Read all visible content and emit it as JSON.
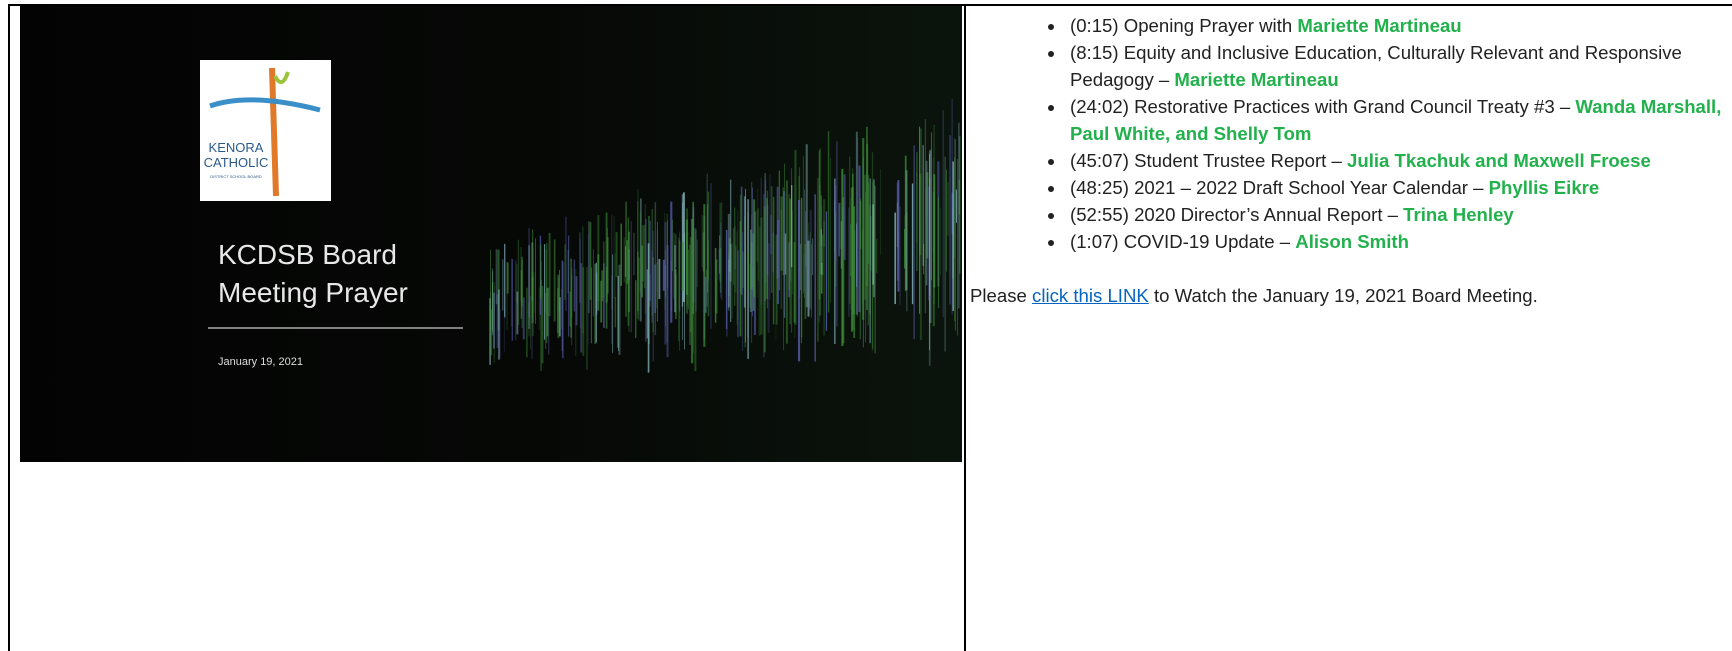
{
  "slide": {
    "logo_line1": "KENORA",
    "logo_line2": "CATHOLIC",
    "logo_line3": "DISTRICT SCHOOL BOARD",
    "title_line1": "KCDSB Board",
    "title_line2": "Meeting Prayer",
    "date": "January 19, 2021"
  },
  "agenda": [
    {
      "text": "(0:15) Opening Prayer with ",
      "names": "Mariette Martineau"
    },
    {
      "text": "(8:15) Equity and Inclusive Education, Culturally Relevant and Responsive Pedagogy – ",
      "names": "Mariette Martineau"
    },
    {
      "text": "(24:02) Restorative Practices with Grand Council Treaty #3 – ",
      "names": "Wanda Marshall, Paul White, and Shelly Tom"
    },
    {
      "text": "(45:07) Student Trustee Report – ",
      "names": "Julia Tkachuk and Maxwell Froese"
    },
    {
      "text": "(48:25) 2021 – 2022 Draft School Year Calendar – ",
      "names": "Phyllis Eikre"
    },
    {
      "text": "(52:55) 2020 Director’s Annual Report – ",
      "names": "Trina Henley"
    },
    {
      "text": "(1:07) COVID-19 Update – ",
      "names": "Alison Smith"
    }
  ],
  "footer": {
    "before": "Please ",
    "link": "click this LINK",
    "after": " to Watch the January 19, 2021 Board Meeting."
  }
}
